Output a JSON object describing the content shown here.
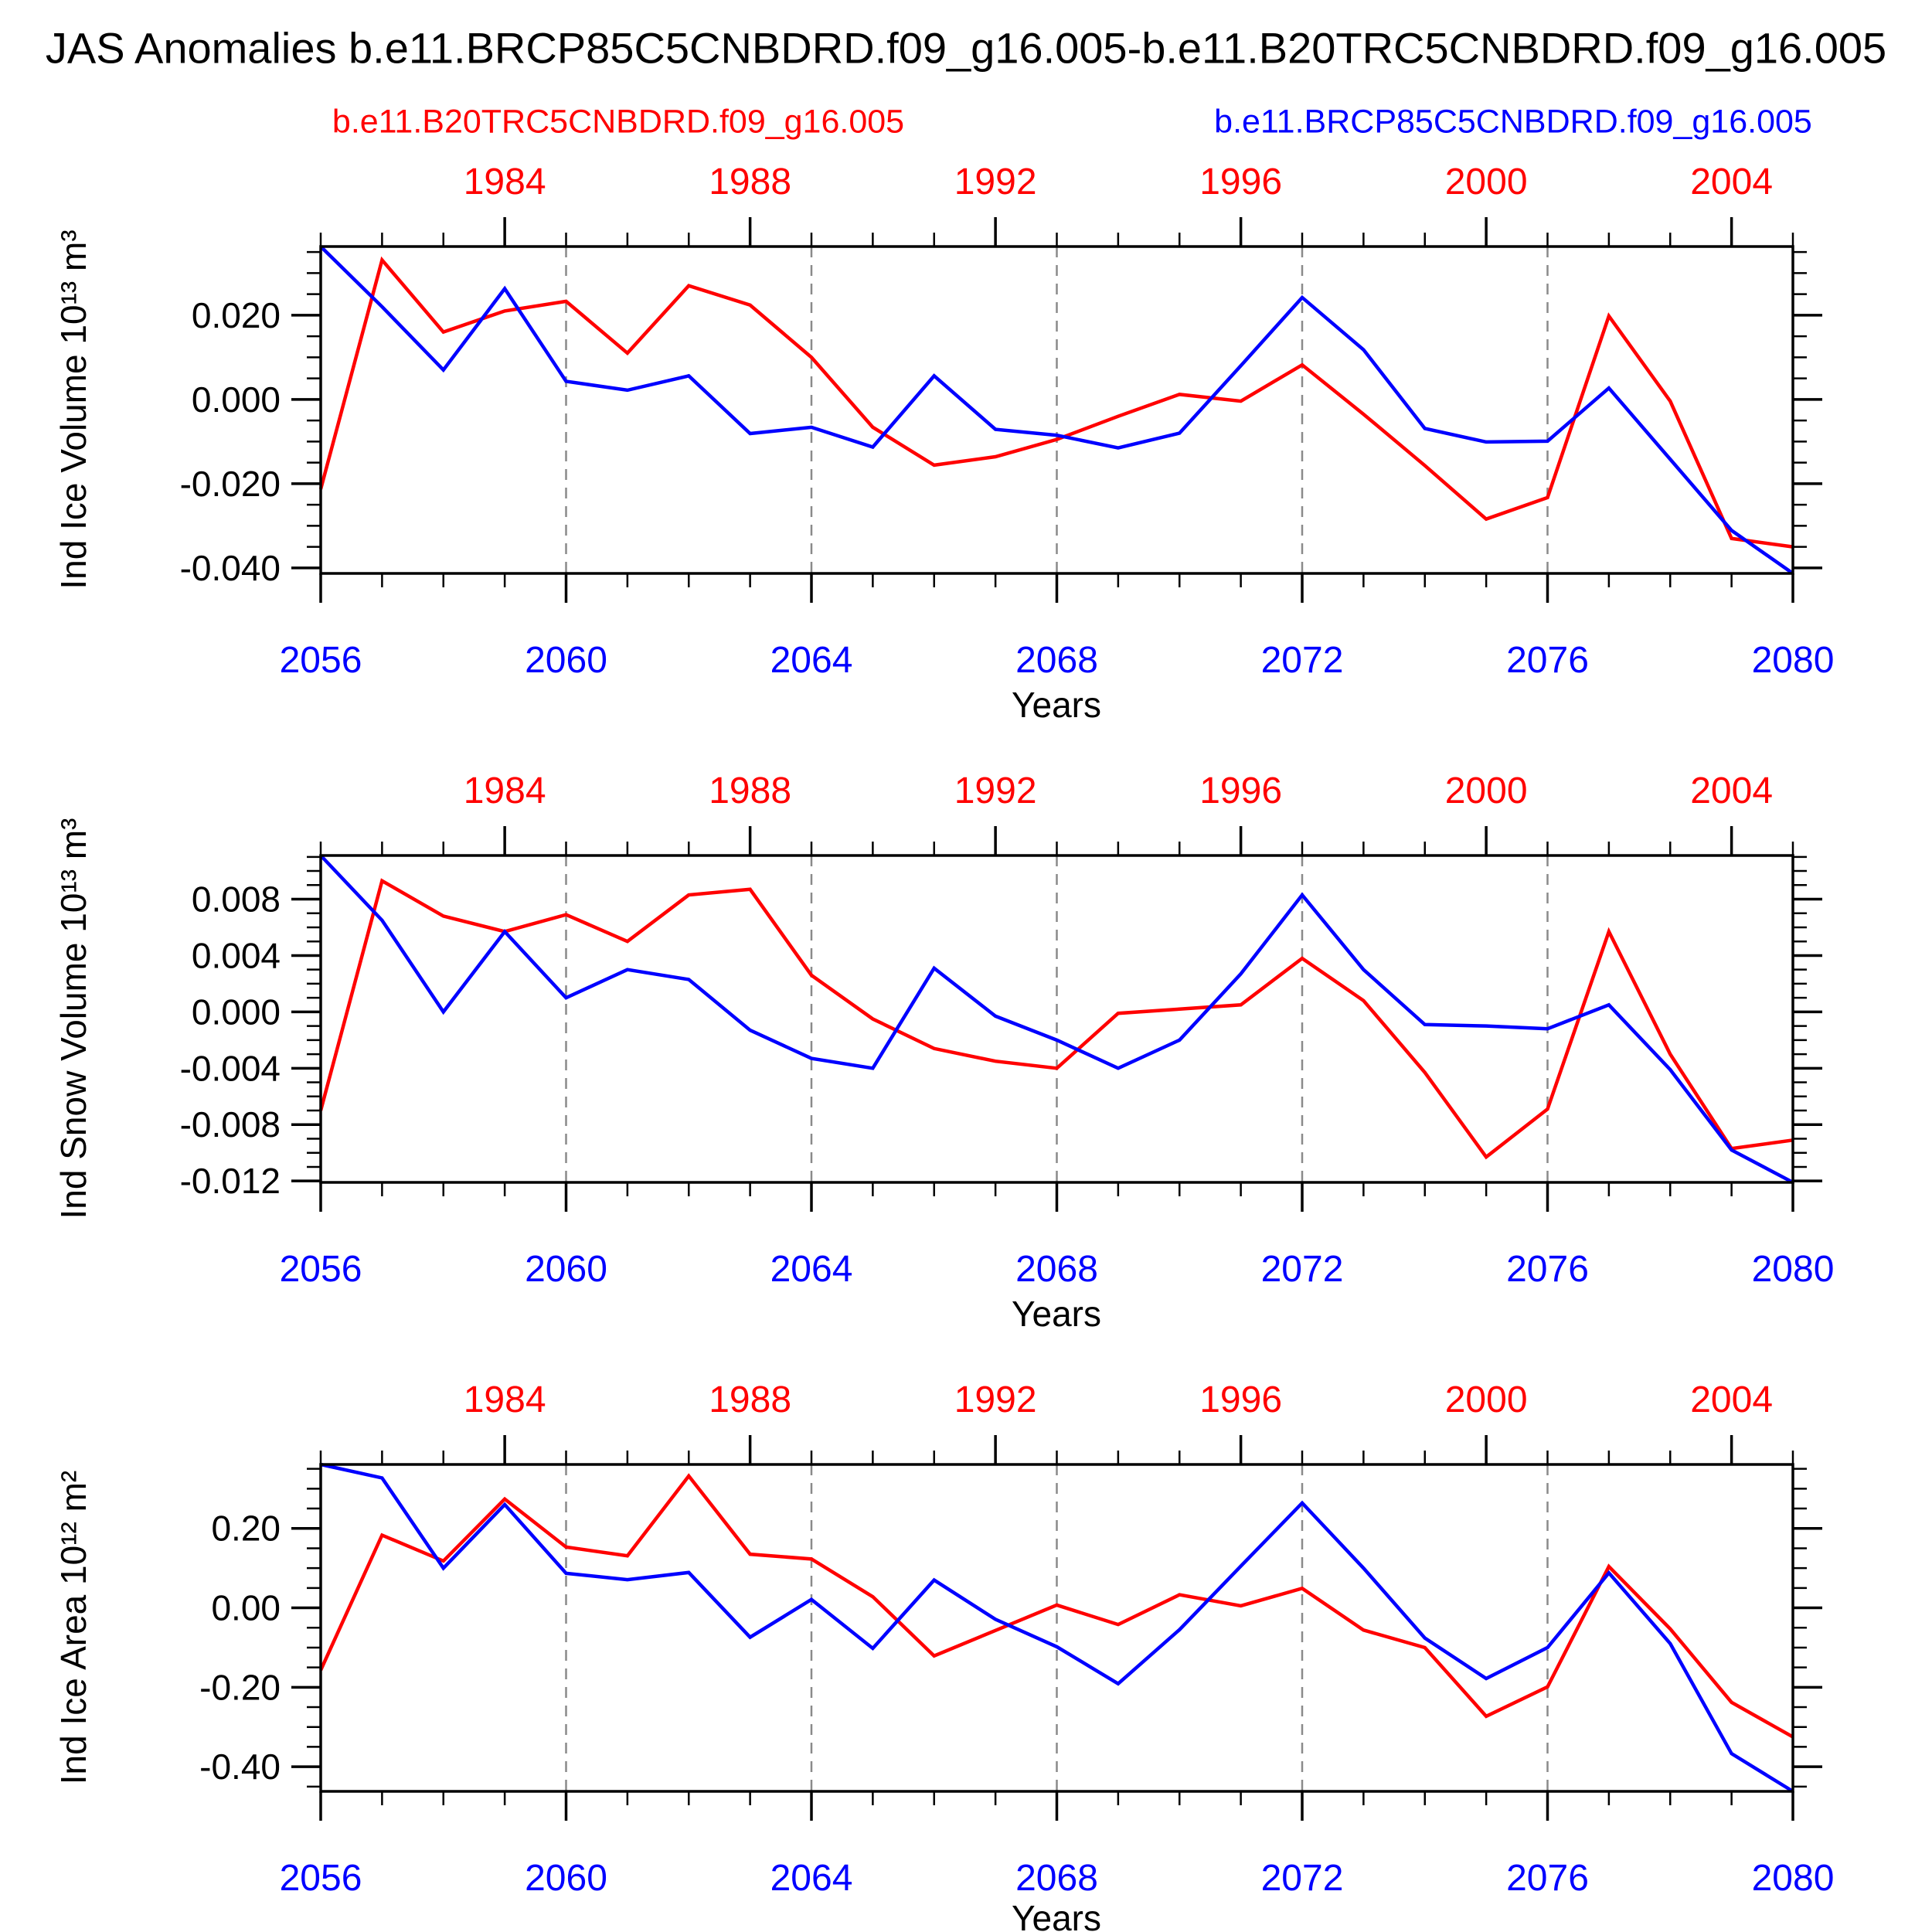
{
  "title": "JAS Anomalies b.e11.BRCP85C5CNBDRD.f09_g16.005-b.e11.B20TRC5CNBDRD.f09_g16.005",
  "legend": {
    "left": {
      "label": "b.e11.B20TRC5CNBDRD.f09_g16.005",
      "color": "#ff0000"
    },
    "right": {
      "label": "b.e11.BRCP85C5CNBDRD.f09_g16.005",
      "color": "#0000ff"
    }
  },
  "colors": {
    "red": "#ff0000",
    "blue": "#0000ff",
    "grid": "#8a8a8a",
    "axis": "#000000"
  },
  "x_axis": {
    "label": "Years",
    "year_start": 2056,
    "year_end": 2080,
    "top_offset": 75,
    "bottom_tick_labels": [
      "2056",
      "2060",
      "2064",
      "2068",
      "2072",
      "2076",
      "2080"
    ],
    "bottom_tick_years": [
      2056,
      2060,
      2064,
      2068,
      2072,
      2076,
      2080
    ],
    "top_tick_labels": [
      "1984",
      "1988",
      "1992",
      "1996",
      "2000",
      "2004"
    ],
    "top_tick_years": [
      1984,
      1988,
      1992,
      1996,
      2000,
      2004
    ],
    "grid_years": [
      2060,
      2064,
      2068,
      2072,
      2076
    ]
  },
  "chart_data": [
    {
      "type": "line",
      "ylabel": "Ind Ice Volume 10¹³ m³",
      "xlabel": "Years",
      "ylim": [
        -0.0413,
        0.0363
      ],
      "ytick_values": [
        0.02,
        0.0,
        -0.02,
        -0.04
      ],
      "ytick_labels": [
        "0.020",
        "0.000",
        "-0.020",
        "-0.040"
      ],
      "minor_step": 0.005,
      "x": [
        2056,
        2057,
        2058,
        2059,
        2060,
        2061,
        2062,
        2063,
        2064,
        2065,
        2066,
        2067,
        2068,
        2069,
        2070,
        2071,
        2072,
        2073,
        2074,
        2075,
        2076,
        2077,
        2078,
        2079,
        2080
      ],
      "series": [
        {
          "name": "b.e11.B20TRC5CNBDRD.f09_g16.005",
          "color": "#ff0000",
          "values": [
            -0.0213,
            0.0331,
            0.016,
            0.021,
            0.0233,
            0.011,
            0.027,
            0.0224,
            0.01,
            -0.0066,
            -0.0156,
            -0.0136,
            -0.0095,
            -0.004,
            0.0012,
            -0.0004,
            0.0082,
            -0.0035,
            -0.0157,
            -0.0284,
            -0.0233,
            0.0198,
            -0.0004,
            -0.033,
            -0.035
          ]
        },
        {
          "name": "b.e11.BRCP85C5CNBDRD.f09_g16.005",
          "color": "#0000ff",
          "values": [
            0.0363,
            0.022,
            0.007,
            0.0263,
            0.0043,
            0.0022,
            0.0056,
            -0.0081,
            -0.0066,
            -0.0113,
            0.0056,
            -0.0071,
            -0.0085,
            -0.0115,
            -0.008,
            0.008,
            0.0242,
            0.0118,
            -0.0069,
            -0.0101,
            -0.0099,
            0.0027,
            -0.0142,
            -0.0311,
            -0.0413
          ]
        }
      ]
    },
    {
      "type": "line",
      "ylabel": "Ind Snow Volume 10¹³ m³",
      "xlabel": "Years",
      "ylim": [
        -0.0121,
        0.0111
      ],
      "ytick_values": [
        0.008,
        0.004,
        0.0,
        -0.004,
        -0.008,
        -0.012
      ],
      "ytick_labels": [
        "0.008",
        "0.004",
        "0.000",
        "-0.004",
        "-0.008",
        "-0.012"
      ],
      "minor_step": 0.001,
      "x": [
        2056,
        2057,
        2058,
        2059,
        2060,
        2061,
        2062,
        2063,
        2064,
        2065,
        2066,
        2067,
        2068,
        2069,
        2070,
        2071,
        2072,
        2073,
        2074,
        2075,
        2076,
        2077,
        2078,
        2079,
        2080
      ],
      "series": [
        {
          "name": "b.e11.B20TRC5CNBDRD.f09_g16.005",
          "color": "#ff0000",
          "values": [
            -0.007,
            0.0093,
            0.0068,
            0.0057,
            0.0069,
            0.005,
            0.0083,
            0.0087,
            0.0026,
            -0.0005,
            -0.0026,
            -0.0035,
            -0.004,
            -0.0001,
            0.0002,
            0.0005,
            0.0038,
            0.0008,
            -0.0043,
            -0.0103,
            -0.0069,
            0.0057,
            -0.003,
            -0.0097,
            -0.0091
          ]
        },
        {
          "name": "b.e11.BRCP85C5CNBDRD.f09_g16.005",
          "color": "#0000ff",
          "values": [
            0.0111,
            0.0065,
            0.0,
            0.0057,
            0.001,
            0.003,
            0.0023,
            -0.0013,
            -0.0033,
            -0.004,
            0.0031,
            -0.0003,
            -0.002,
            -0.004,
            -0.002,
            0.0027,
            0.0083,
            0.003,
            -0.0009,
            -0.001,
            -0.0012,
            0.0005,
            -0.0041,
            -0.0098,
            -0.0121
          ]
        }
      ]
    },
    {
      "type": "line",
      "ylabel": "Ind Ice Area 10¹² m²",
      "xlabel": "Years",
      "ylim": [
        -0.462,
        0.361
      ],
      "ytick_values": [
        0.2,
        0.0,
        -0.2,
        -0.4
      ],
      "ytick_labels": [
        "0.20",
        "0.00",
        "-0.20",
        "-0.40"
      ],
      "minor_step": 0.05,
      "x": [
        2056,
        2057,
        2058,
        2059,
        2060,
        2061,
        2062,
        2063,
        2064,
        2065,
        2066,
        2067,
        2068,
        2069,
        2070,
        2071,
        2072,
        2073,
        2074,
        2075,
        2076,
        2077,
        2078,
        2079,
        2080
      ],
      "series": [
        {
          "name": "b.e11.B20TRC5CNBDRD.f09_g16.005",
          "color": "#ff0000",
          "values": [
            -0.157,
            0.183,
            0.118,
            0.274,
            0.153,
            0.131,
            0.332,
            0.135,
            0.123,
            0.028,
            -0.121,
            -0.057,
            0.007,
            -0.042,
            0.033,
            0.005,
            0.049,
            -0.056,
            -0.1,
            -0.273,
            -0.199,
            0.104,
            -0.053,
            -0.238,
            -0.325
          ]
        },
        {
          "name": "b.e11.BRCP85C5CNBDRD.f09_g16.005",
          "color": "#0000ff",
          "values": [
            0.361,
            0.327,
            0.1,
            0.26,
            0.087,
            0.071,
            0.089,
            -0.074,
            0.021,
            -0.102,
            0.07,
            -0.029,
            -0.098,
            -0.191,
            -0.055,
            0.105,
            0.264,
            0.1,
            -0.076,
            -0.178,
            -0.1,
            0.088,
            -0.09,
            -0.367,
            -0.462
          ]
        }
      ]
    }
  ]
}
